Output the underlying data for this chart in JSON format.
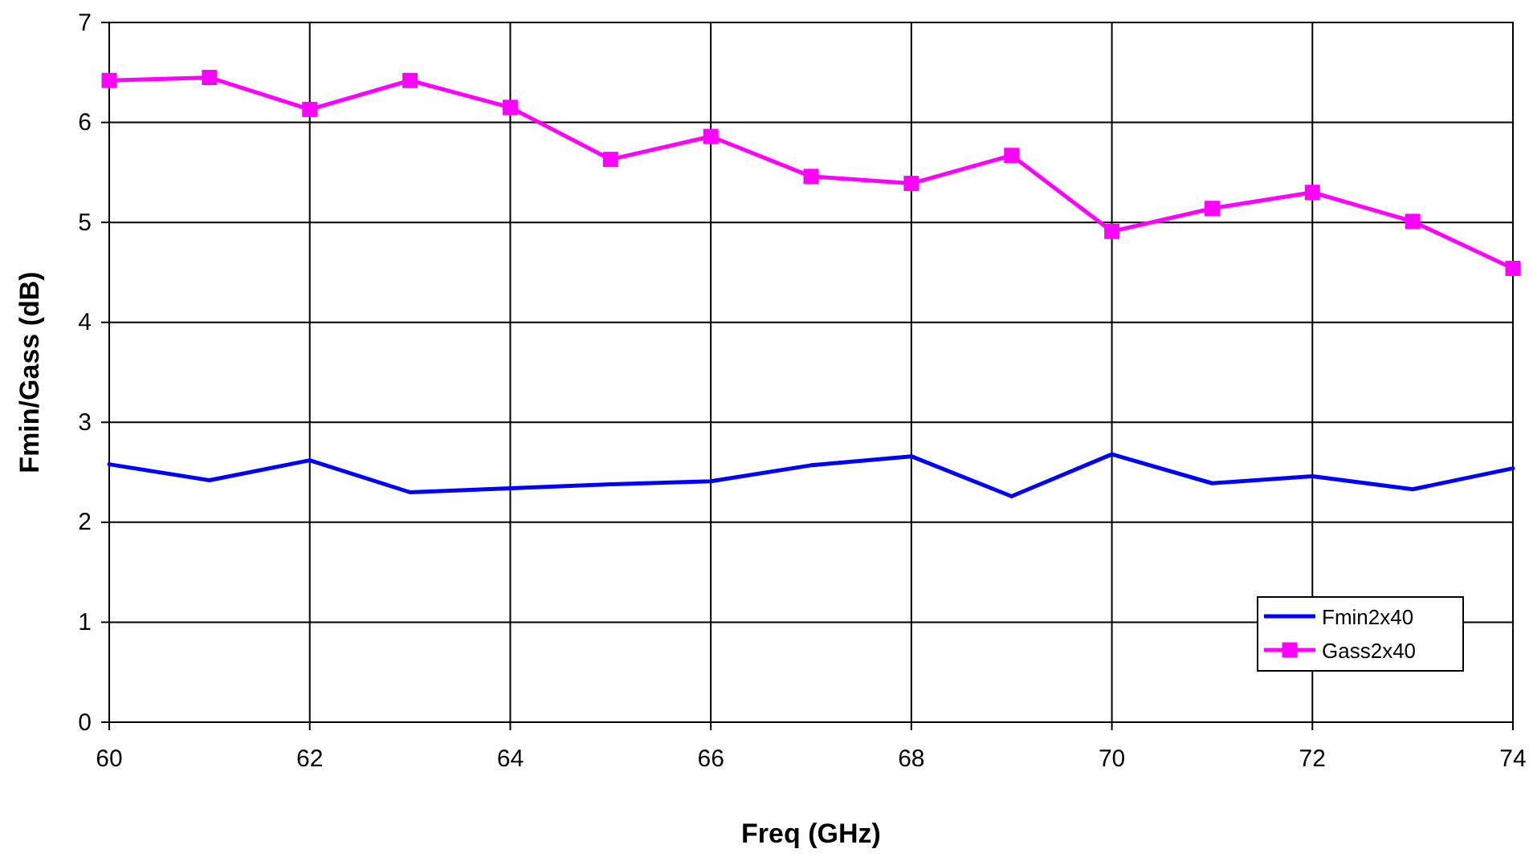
{
  "chart_data": {
    "type": "line",
    "xlabel": "Freq (GHz)",
    "ylabel": "Fmin/Gass (dB)",
    "x": [
      60,
      61,
      62,
      63,
      64,
      65,
      66,
      67,
      68,
      69,
      70,
      71,
      72,
      73,
      74
    ],
    "xlim": [
      60,
      74
    ],
    "xticks": [
      60,
      62,
      64,
      66,
      68,
      70,
      72,
      74
    ],
    "ylim": [
      0,
      7
    ],
    "yticks": [
      0,
      1,
      2,
      3,
      4,
      5,
      6,
      7
    ],
    "grid": true,
    "legend": "bottom right",
    "series": [
      {
        "name": "Fmin2x40",
        "color": "#0000ff",
        "marker": "none",
        "values": [
          2.58,
          2.42,
          2.62,
          2.3,
          2.34,
          2.38,
          2.41,
          2.57,
          2.66,
          2.26,
          2.68,
          2.39,
          2.46,
          2.33,
          2.54
        ]
      },
      {
        "name": "Gass2x40",
        "color": "#ff00ff",
        "marker": "square",
        "values": [
          6.42,
          6.45,
          6.13,
          6.42,
          6.15,
          5.63,
          5.86,
          5.46,
          5.39,
          5.67,
          4.91,
          5.14,
          5.3,
          5.01,
          4.54
        ]
      }
    ]
  }
}
